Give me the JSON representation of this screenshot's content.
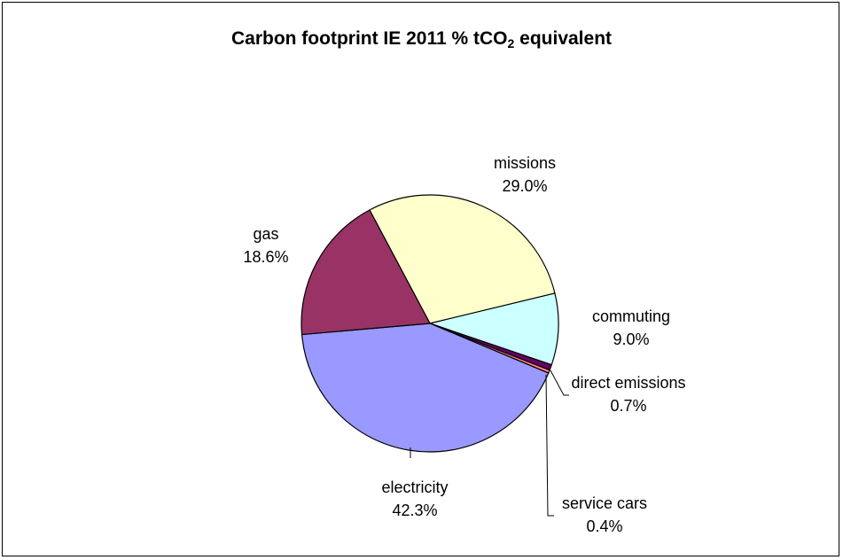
{
  "chart_data": {
    "type": "pie",
    "title": {
      "prefix": "Carbon footprint IE 2011 % tCO",
      "subscript": "2",
      "suffix": " equivalent"
    },
    "slices": [
      {
        "name": "missions",
        "value": 29.0,
        "label": "29.0%",
        "color": "#FFFFCC"
      },
      {
        "name": "commuting",
        "value": 9.0,
        "label": "9.0%",
        "color": "#CCFFFF"
      },
      {
        "name": "direct emissions",
        "value": 0.7,
        "label": "0.7%",
        "color": "#660066"
      },
      {
        "name": "service cars",
        "value": 0.4,
        "label": "0.4%",
        "color": "#FF8080"
      },
      {
        "name": "electricity",
        "value": 42.3,
        "label": "42.3%",
        "color": "#9999FF"
      },
      {
        "name": "gas",
        "value": 18.6,
        "label": "18.6%",
        "color": "#993366"
      }
    ],
    "legend": "none",
    "data_labels": "name and percentage"
  }
}
